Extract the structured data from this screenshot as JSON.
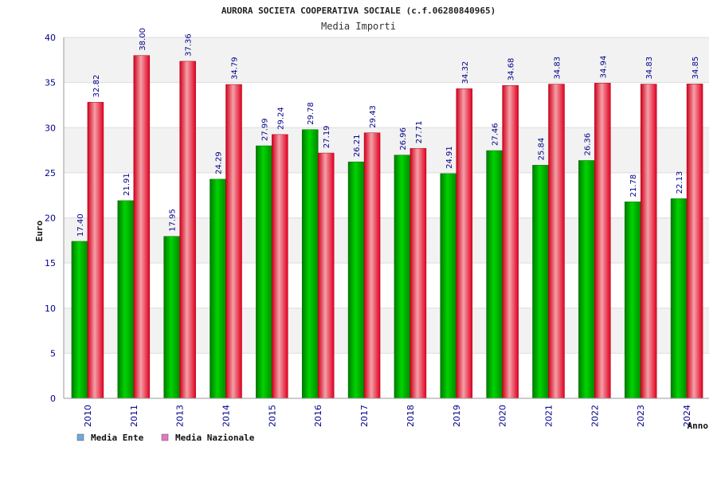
{
  "chart_data": {
    "type": "bar",
    "title": "AURORA SOCIETA COOPERATIVA SOCIALE (c.f.06280840965)",
    "subtitle": "Media Importi",
    "xlabel": "Anno",
    "ylabel": "Euro",
    "ylim": [
      0,
      40
    ],
    "ytick_labels": [
      "0",
      "5",
      "10",
      "15",
      "20",
      "25",
      "30",
      "35",
      "40"
    ],
    "categories": [
      "2010",
      "2011",
      "2013",
      "2014",
      "2015",
      "2016",
      "2017",
      "2018",
      "2019",
      "2020",
      "2021",
      "2022",
      "2023",
      "2024"
    ],
    "series": [
      {
        "name": "Media Ente",
        "color": "#00b400",
        "legend_color": "#6fa8dc",
        "values": [
          17.4,
          21.91,
          17.95,
          24.29,
          27.99,
          29.78,
          26.21,
          26.96,
          24.91,
          27.46,
          25.84,
          26.36,
          21.78,
          22.13
        ],
        "labels": [
          "17.40",
          "21.91",
          "17.95",
          "24.29",
          "27.99",
          "29.78",
          "26.21",
          "26.96",
          "24.91",
          "27.46",
          "25.84",
          "26.36",
          "21.78",
          "22.13"
        ]
      },
      {
        "name": "Media Nazionale",
        "color": "#e8001c",
        "legend_color": "#e377c2",
        "values": [
          32.82,
          38.0,
          37.36,
          34.79,
          29.24,
          27.19,
          29.43,
          27.71,
          34.32,
          34.68,
          34.83,
          34.94,
          34.83,
          34.85
        ],
        "labels": [
          "32.82",
          "38.00",
          "37.36",
          "34.79",
          "29.24",
          "27.19",
          "29.43",
          "27.71",
          "34.32",
          "34.68",
          "34.83",
          "34.94",
          "34.83",
          "34.85"
        ]
      }
    ],
    "grid": true,
    "legend": "bottom-left"
  }
}
